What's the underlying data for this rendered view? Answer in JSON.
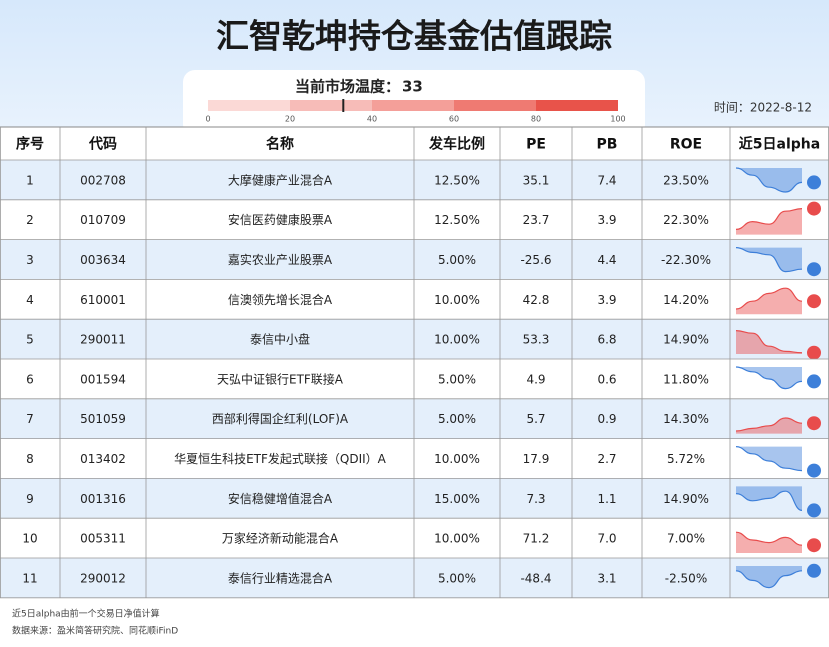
{
  "header": {
    "title": "汇智乾坤持仓基金估值跟踪",
    "temperature_label": "当前市场温度：",
    "temperature": 33,
    "time": "时间：2022-8-12"
  },
  "gauge": {
    "ticks": [
      0,
      20,
      40,
      60,
      80,
      100
    ],
    "colors": [
      "#fbd9d6",
      "#f7bcb8",
      "#f49f99",
      "#ef7a72",
      "#e8534a"
    ]
  },
  "table": {
    "columns": [
      "序号",
      "代码",
      "名称",
      "发车比例",
      "PE",
      "PB",
      "ROE",
      "近5日alpha"
    ],
    "rows": [
      [
        "1",
        "002708",
        "大摩健康产业混合A",
        "12.50%",
        "35.1",
        "7.4",
        "23.50%"
      ],
      [
        "2",
        "010709",
        "安信医药健康股票A",
        "12.50%",
        "23.7",
        "3.9",
        "22.30%"
      ],
      [
        "3",
        "003634",
        "嘉实农业产业股票A",
        "5.00%",
        "-25.6",
        "4.4",
        "-22.30%"
      ],
      [
        "4",
        "610001",
        "信澳领先增长混合A",
        "10.00%",
        "42.8",
        "3.9",
        "14.20%"
      ],
      [
        "5",
        "290011",
        "泰信中小盘",
        "10.00%",
        "53.3",
        "6.8",
        "14.90%"
      ],
      [
        "6",
        "001594",
        "天弘中证银行ETF联接A",
        "5.00%",
        "4.9",
        "0.6",
        "11.80%"
      ],
      [
        "7",
        "501059",
        "西部利得国企红利(LOF)A",
        "5.00%",
        "5.7",
        "0.9",
        "14.30%"
      ],
      [
        "8",
        "013402",
        "华夏恒生科技ETF发起式联接（QDII）A",
        "10.00%",
        "17.9",
        "2.7",
        "5.72%"
      ],
      [
        "9",
        "001316",
        "安信稳健增值混合A",
        "15.00%",
        "7.3",
        "1.1",
        "14.90%"
      ],
      [
        "10",
        "005311",
        "万家经济新动能混合A",
        "10.00%",
        "71.2",
        "7.0",
        "7.00%"
      ],
      [
        "11",
        "290012",
        "泰信行业精选混合A",
        "5.00%",
        "-48.4",
        "3.1",
        "-2.50%"
      ]
    ]
  },
  "alpha": [
    [
      0,
      -0.3,
      -0.8,
      -1.0,
      -0.6
    ],
    [
      0.2,
      0.5,
      0.4,
      0.9,
      1.0
    ],
    [
      0,
      -0.2,
      -0.3,
      -1.0,
      -0.9
    ],
    [
      0.2,
      0.5,
      0.8,
      1.0,
      0.5
    ],
    [
      0.9,
      0.8,
      0.3,
      0.1,
      0.05
    ],
    [
      0,
      -0.2,
      -0.5,
      -0.9,
      -0.6
    ],
    [
      0.1,
      0.2,
      0.3,
      0.6,
      0.4
    ],
    [
      0,
      -0.3,
      -0.6,
      -0.9,
      -1.0
    ],
    [
      -0.3,
      -0.6,
      -0.5,
      -0.2,
      -1.0
    ],
    [
      0.8,
      0.5,
      0.4,
      0.6,
      0.3
    ],
    [
      -0.2,
      -0.6,
      -0.9,
      -0.4,
      -0.2
    ]
  ],
  "notes": [
    "近5日alpha由前一个交易日净值计算",
    "数据来源：盈米简答研究院、同花顺iFinD"
  ]
}
